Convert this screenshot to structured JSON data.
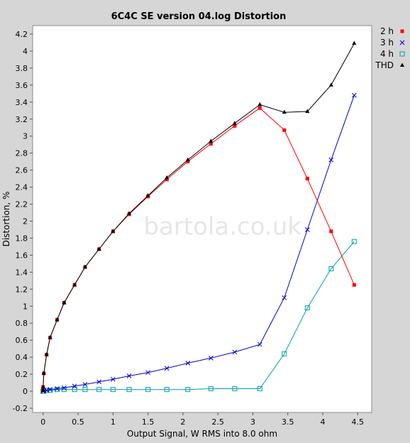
{
  "chart_data": {
    "type": "line",
    "title": "6C4C SE version 04.log Distortion",
    "xlabel": "Output Signal, W RMS into 8.0 ohm",
    "ylabel": "Distortion, %",
    "xlim": [
      -0.15,
      4.7
    ],
    "ylim": [
      -0.25,
      4.3
    ],
    "xticks": [
      0,
      0.5,
      1,
      1.5,
      2,
      2.5,
      3,
      3.5,
      4,
      4.5
    ],
    "xtick_labels": [
      "0",
      "0.5",
      "1",
      "1.5",
      "2",
      "2.5",
      "3",
      "3.5",
      "4",
      "4.5"
    ],
    "yticks": [
      -0.2,
      0,
      0.2,
      0.4,
      0.6,
      0.8,
      1,
      1.2,
      1.4,
      1.6,
      1.8,
      2,
      2.2,
      2.4,
      2.6,
      2.8,
      3,
      3.2,
      3.4,
      3.6,
      3.8,
      4,
      4.2
    ],
    "ytick_labels": [
      "-0.2",
      "0",
      "0.2",
      "0.4",
      "0.6",
      "0.8",
      "1",
      "1.2",
      "1.4",
      "1.6",
      "1.8",
      "2",
      "2.2",
      "2.4",
      "2.6",
      "2.8",
      "3",
      "3.2",
      "3.4",
      "3.6",
      "3.8",
      "4",
      "4.2"
    ],
    "grid": false,
    "legend_position": "right",
    "watermark": "bartola.co.uk",
    "series": [
      {
        "name": "2 h",
        "color": "#ff0000",
        "marker": "square-filled",
        "x": [
          0.0,
          0.0,
          0.01,
          0.05,
          0.1,
          0.2,
          0.3,
          0.45,
          0.6,
          0.8,
          1.0,
          1.23,
          1.5,
          1.77,
          2.07,
          2.4,
          2.74,
          3.1,
          3.45,
          3.78,
          4.12,
          4.45
        ],
        "y": [
          0.01,
          0.05,
          0.21,
          0.43,
          0.63,
          0.84,
          1.04,
          1.25,
          1.46,
          1.67,
          1.88,
          2.08,
          2.29,
          2.49,
          2.7,
          2.91,
          3.12,
          3.33,
          3.07,
          2.5,
          1.88,
          1.25
        ]
      },
      {
        "name": "3 h",
        "color": "#0000cc",
        "marker": "x",
        "x": [
          0.0,
          0.0,
          0.01,
          0.05,
          0.1,
          0.2,
          0.3,
          0.45,
          0.6,
          0.8,
          1.0,
          1.23,
          1.5,
          1.77,
          2.07,
          2.4,
          2.74,
          3.1,
          3.45,
          3.78,
          4.12,
          4.45
        ],
        "y": [
          0.0,
          0.0,
          0.01,
          0.01,
          0.02,
          0.03,
          0.04,
          0.06,
          0.08,
          0.11,
          0.14,
          0.18,
          0.22,
          0.27,
          0.33,
          0.39,
          0.46,
          0.55,
          1.1,
          1.9,
          2.72,
          3.48
        ]
      },
      {
        "name": "4 h",
        "color": "#00a0a0",
        "marker": "square-open",
        "x": [
          0.0,
          0.0,
          0.01,
          0.05,
          0.1,
          0.2,
          0.3,
          0.45,
          0.6,
          0.8,
          1.0,
          1.23,
          1.5,
          1.77,
          2.07,
          2.4,
          2.74,
          3.1,
          3.45,
          3.78,
          4.12,
          4.45
        ],
        "y": [
          0.0,
          0.0,
          0.0,
          0.01,
          0.01,
          0.02,
          0.02,
          0.02,
          0.02,
          0.02,
          0.02,
          0.02,
          0.02,
          0.02,
          0.02,
          0.03,
          0.03,
          0.03,
          0.44,
          0.98,
          1.44,
          1.76
        ]
      },
      {
        "name": "THD",
        "color": "#000000",
        "marker": "triangle-filled",
        "x": [
          0.0,
          0.0,
          0.01,
          0.05,
          0.1,
          0.2,
          0.3,
          0.45,
          0.6,
          0.8,
          1.0,
          1.23,
          1.5,
          1.77,
          2.07,
          2.4,
          2.74,
          3.1,
          3.45,
          3.78,
          4.12,
          4.45
        ],
        "y": [
          0.01,
          0.05,
          0.21,
          0.43,
          0.63,
          0.84,
          1.04,
          1.25,
          1.46,
          1.67,
          1.88,
          2.09,
          2.3,
          2.51,
          2.72,
          2.94,
          3.15,
          3.37,
          3.28,
          3.29,
          3.6,
          4.09
        ]
      }
    ]
  }
}
